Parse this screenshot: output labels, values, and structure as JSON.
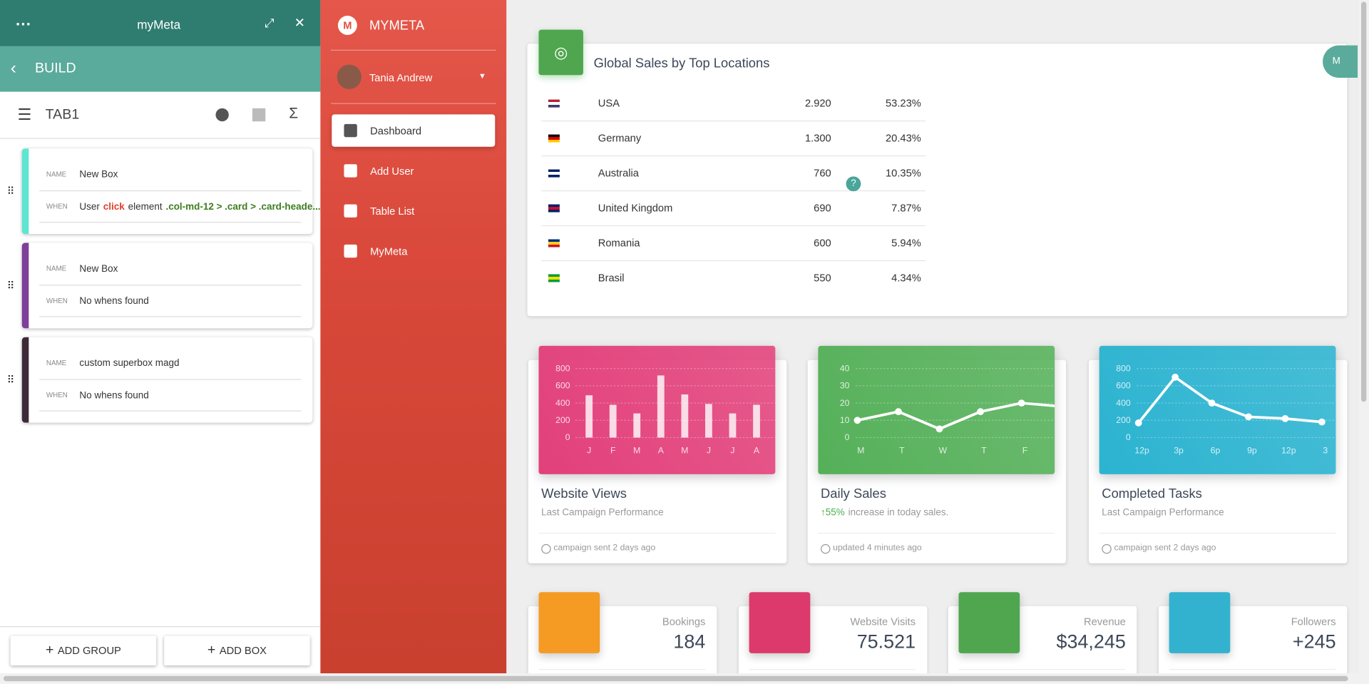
{
  "builder": {
    "brand": "myMeta",
    "section": "BUILD",
    "tab": "TAB1",
    "boxes": [
      {
        "name_label": "NAME",
        "name": "New Box",
        "when_label": "WHEN",
        "when_parts": [
          "User",
          "click",
          "element",
          ".col-md-12 > .card > .card-heade..."
        ],
        "color": "#5ee6d2"
      },
      {
        "name_label": "NAME",
        "name": "New Box",
        "when_label": "WHEN",
        "when_parts": [
          "No whens found"
        ],
        "color": "#7d3f98"
      },
      {
        "name_label": "NAME",
        "name": "custom superbox magd",
        "when_label": "WHEN",
        "when_parts": [
          "No whens found"
        ],
        "color": "#3d2a38"
      }
    ],
    "buttons": [
      "ADD GROUP",
      "ADD BOX"
    ]
  },
  "sidebar": {
    "brand": "MYMETA",
    "user": "Tania Andrew",
    "nav": [
      "Dashboard",
      "Add User",
      "Table List",
      "MyMeta"
    ]
  },
  "sales": {
    "title": "Global Sales by Top Locations",
    "rows": [
      [
        "USA",
        "2.920",
        "53.23%"
      ],
      [
        "Germany",
        "1.300",
        "20.43%"
      ],
      [
        "Australia",
        "760",
        "10.35%"
      ],
      [
        "United Kingdom",
        "690",
        "7.87%"
      ],
      [
        "Romania",
        "600",
        "5.94%"
      ],
      [
        "Brasil",
        "550",
        "4.34%"
      ]
    ]
  },
  "chart_data": [
    {
      "type": "bar",
      "title": "Website Views",
      "subtitle": "Last Campaign Performance",
      "footer": "campaign sent 2 days ago",
      "color": "#e2407a",
      "categories": [
        "J",
        "F",
        "M",
        "A",
        "M",
        "J",
        "J",
        "A"
      ],
      "values": [
        490,
        380,
        280,
        720,
        500,
        390,
        280,
        380
      ],
      "ylim": [
        0,
        800
      ],
      "yticks": [
        0,
        200,
        400,
        600,
        800
      ],
      "grid": true
    },
    {
      "type": "line",
      "title": "Daily Sales",
      "subtitle_highlight": "55%",
      "subtitle": "increase in today sales.",
      "footer": "updated 4 minutes ago",
      "color": "#55b059",
      "categories": [
        "M",
        "T",
        "W",
        "T",
        "F",
        null
      ],
      "values": [
        10,
        15,
        5,
        15,
        20,
        18
      ],
      "ylim": [
        0,
        40
      ],
      "yticks": [
        0,
        10,
        20,
        30,
        40
      ],
      "grid": true
    },
    {
      "type": "line",
      "title": "Completed Tasks",
      "subtitle": "Last Campaign Performance",
      "footer": "campaign sent 2 days ago",
      "color": "#2bb3d0",
      "categories": [
        "12p",
        "3p",
        "6p",
        "9p",
        "12p",
        "3"
      ],
      "values": [
        170,
        700,
        400,
        240,
        220,
        180
      ],
      "ylim": [
        0,
        800
      ],
      "yticks": [
        0,
        200,
        400,
        600,
        800
      ],
      "grid": true
    }
  ],
  "stats": [
    {
      "label": "Bookings",
      "value": "184",
      "color": "#f59a23"
    },
    {
      "label": "Website Visits",
      "value": "75.521",
      "color": "#dc3a6c"
    },
    {
      "label": "Revenue",
      "value": "$34,245",
      "color": "#4fa64f"
    },
    {
      "label": "Followers",
      "value": "+245",
      "color": "#33b2cf"
    }
  ]
}
